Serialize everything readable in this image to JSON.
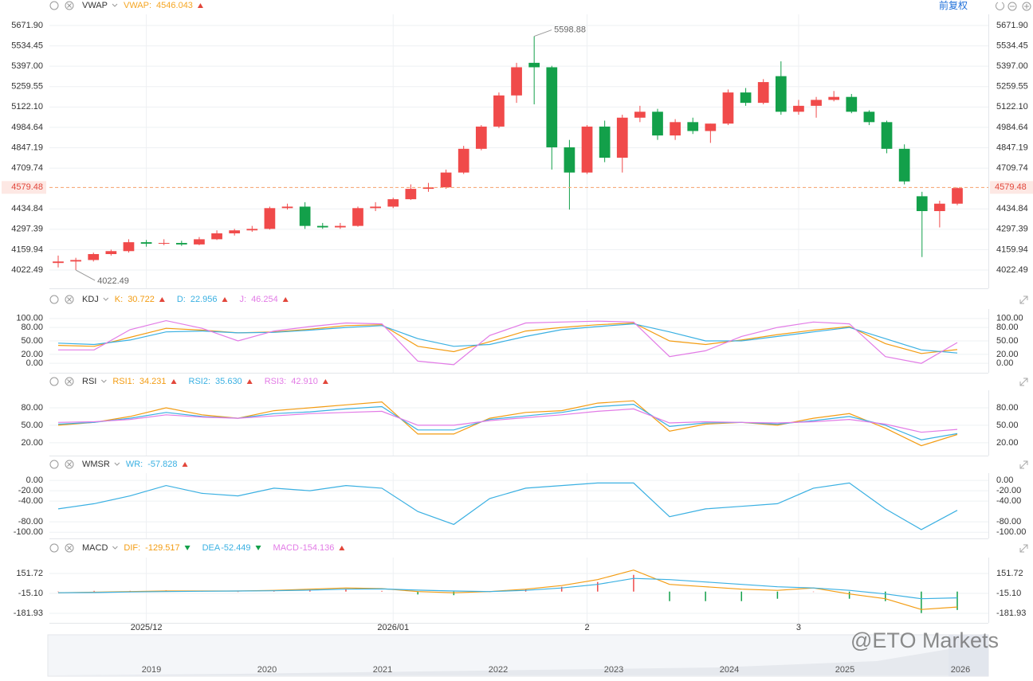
{
  "toolbar": {
    "adjust": "前复权"
  },
  "watermark": "@ETO Markets",
  "navigator": {
    "years": [
      "2019",
      "2020",
      "2021",
      "2022",
      "2023",
      "2024",
      "2025",
      "2026"
    ]
  },
  "chart_data": [
    {
      "type": "candlestick",
      "title": "VWAP",
      "indicators": [
        {
          "name": "VWAP:",
          "current": 4546.043,
          "color": "#f5a623",
          "trend": "up"
        }
      ],
      "categories": [
        null,
        null,
        null,
        null,
        null,
        "2025/12",
        null,
        null,
        null,
        null,
        null,
        null,
        null,
        null,
        null,
        null,
        null,
        null,
        null,
        "2026/01",
        null,
        null,
        null,
        null,
        null,
        null,
        null,
        null,
        null,
        null,
        "2",
        null,
        null,
        null,
        null,
        null,
        null,
        null,
        null,
        null,
        null,
        null,
        "3",
        null,
        null,
        null,
        null,
        null,
        null,
        null,
        null,
        null
      ],
      "open": [
        4070,
        4080,
        4090,
        4130,
        4150,
        4210,
        4200,
        4205,
        4195,
        4230,
        4270,
        4290,
        4300,
        4440,
        4450,
        4320,
        4310,
        4320,
        4440,
        4450,
        4500,
        4570,
        4580,
        4680,
        4840,
        4990,
        5200,
        5420,
        5390,
        4850,
        4680,
        4990,
        4780,
        5050,
        5090,
        4930,
        5020,
        4960,
        5010,
        5220,
        5150,
        5330,
        5090,
        5130,
        5170,
        5190,
        5090,
        5020,
        4840,
        4520,
        4420,
        4470
      ],
      "high": [
        4120,
        4105,
        4140,
        4160,
        4230,
        4225,
        4230,
        4220,
        4245,
        4290,
        4300,
        4320,
        4450,
        4470,
        4480,
        4340,
        4340,
        4450,
        4480,
        4510,
        4600,
        4610,
        4700,
        4860,
        5000,
        5220,
        5420,
        5598.88,
        5400,
        4900,
        5000,
        5030,
        5070,
        5130,
        5110,
        5040,
        5050,
        5010,
        5240,
        5250,
        5310,
        5430,
        5170,
        5190,
        5230,
        5210,
        5100,
        5030,
        4870,
        4550,
        4490,
        4580
      ],
      "low": [
        4040,
        4022.49,
        4080,
        4120,
        4140,
        4180,
        4190,
        4185,
        4190,
        4225,
        4255,
        4280,
        4295,
        4430,
        4300,
        4300,
        4300,
        4315,
        4420,
        4440,
        4495,
        4550,
        4570,
        4670,
        4830,
        4980,
        5150,
        5140,
        4700,
        4430,
        4670,
        4750,
        4680,
        5020,
        4900,
        4900,
        4940,
        4880,
        5000,
        5130,
        5140,
        5070,
        5070,
        5050,
        5160,
        5080,
        5000,
        4810,
        4600,
        4110,
        4310,
        4460
      ],
      "close": [
        4080,
        4090,
        4130,
        4150,
        4210,
        4200,
        4205,
        4195,
        4230,
        4270,
        4290,
        4300,
        4440,
        4450,
        4320,
        4310,
        4320,
        4440,
        4450,
        4500,
        4570,
        4580,
        4680,
        4840,
        4990,
        5200,
        5390,
        5390,
        4850,
        4680,
        4990,
        4780,
        5050,
        5090,
        4930,
        5020,
        4960,
        5010,
        5220,
        5150,
        5290,
        5090,
        5130,
        5170,
        5190,
        5090,
        5020,
        4840,
        4620,
        4420,
        4470,
        4575
      ],
      "up_color": "#f04a4a",
      "down_color": "#13a04a",
      "last_price": {
        "value": 4579.48,
        "label": "4579.48"
      },
      "ylim": [
        3899,
        5747
      ],
      "yticks": [
        {
          "value": 5671.9,
          "label": "5671.90"
        },
        5534.45,
        {
          "value": 5397,
          "label": "5397.00"
        },
        5259.55,
        {
          "value": 5122.1,
          "label": "5122.10"
        },
        4984.64,
        4847.19,
        4709.74,
        4434.84,
        4297.39,
        4159.94,
        4022.49
      ],
      "grid": true
    },
    {
      "type": "line",
      "title": "KDJ",
      "series": [
        {
          "name": "K:",
          "color": "#f39c12",
          "trend": "up",
          "current": 30.722,
          "values": [
            40,
            38,
            58,
            78,
            74,
            68,
            70,
            76,
            84,
            86,
            38,
            26,
            48,
            72,
            80,
            86,
            90,
            50,
            42,
            52,
            64,
            74,
            82,
            44,
            22,
            30.722
          ]
        },
        {
          "name": "D:",
          "color": "#3ab0e2",
          "trend": "up",
          "current": 22.956,
          "values": [
            45,
            42,
            52,
            70,
            72,
            68,
            69,
            74,
            80,
            84,
            55,
            38,
            42,
            60,
            75,
            82,
            88,
            70,
            50,
            50,
            60,
            70,
            80,
            55,
            30,
            22.956
          ]
        },
        {
          "name": "J:",
          "color": "#e27be6",
          "trend": "up",
          "current": 46.254,
          "values": [
            30,
            30,
            75,
            95,
            78,
            50,
            72,
            82,
            90,
            88,
            5,
            -3,
            62,
            90,
            92,
            94,
            92,
            15,
            28,
            60,
            80,
            92,
            88,
            15,
            0,
            46.254
          ]
        }
      ],
      "ylim": [
        -21,
        121
      ],
      "yticks": [
        {
          "value": 100,
          "label": "100.00"
        },
        {
          "value": 80,
          "label": "80.00"
        },
        {
          "value": 50,
          "label": "50.00"
        },
        {
          "value": 20,
          "label": "20.00"
        },
        {
          "value": 0,
          "label": "0.00"
        }
      ],
      "grid": true
    },
    {
      "type": "line",
      "title": "RSI",
      "series": [
        {
          "name": "RSI1:",
          "color": "#f39c12",
          "trend": "up",
          "current": 34.231,
          "values": [
            50,
            55,
            65,
            80,
            68,
            62,
            75,
            80,
            85,
            90,
            35,
            35,
            62,
            72,
            75,
            88,
            92,
            40,
            52,
            55,
            50,
            62,
            70,
            45,
            15,
            34.231
          ]
        },
        {
          "name": "RSI2:",
          "color": "#3ab0e2",
          "trend": "up",
          "current": {
            "value": 35.63,
            "label": "35.630"
          },
          "values": [
            52,
            55,
            62,
            72,
            65,
            62,
            70,
            73,
            78,
            82,
            42,
            42,
            60,
            66,
            72,
            82,
            86,
            48,
            54,
            55,
            52,
            58,
            65,
            50,
            25,
            35.63
          ]
        },
        {
          "name": "RSI3:",
          "color": "#e27be6",
          "trend": "up",
          "current": {
            "value": 42.91,
            "label": "42.910"
          },
          "values": [
            55,
            56,
            60,
            68,
            64,
            62,
            66,
            70,
            72,
            74,
            50,
            50,
            58,
            63,
            68,
            74,
            78,
            54,
            56,
            55,
            54,
            56,
            60,
            52,
            38,
            42.91
          ]
        }
      ],
      "ylim": [
        -2,
        110
      ],
      "yticks": [
        {
          "value": 80,
          "label": "80.00"
        },
        {
          "value": 50,
          "label": "50.00"
        },
        {
          "value": 20,
          "label": "20.00"
        }
      ],
      "grid": true
    },
    {
      "type": "line",
      "title": "WMSR",
      "series": [
        {
          "name": "WR:",
          "color": "#3ab0e2",
          "trend": "up",
          "current": -57.828,
          "values": [
            -55,
            -45,
            -30,
            -10,
            -25,
            -30,
            -15,
            -20,
            -10,
            -15,
            -60,
            -85,
            -35,
            -15,
            -10,
            -5,
            -5,
            -70,
            -55,
            -50,
            -45,
            -15,
            -5,
            -55,
            -95,
            -57.828
          ]
        }
      ],
      "ylim": [
        -112,
        14
      ],
      "yticks": [
        {
          "value": 0,
          "label": "0.00"
        },
        {
          "value": -20,
          "label": "-20.00"
        },
        {
          "value": -40,
          "label": "-40.00"
        },
        {
          "value": -80,
          "label": "-80.00"
        },
        {
          "value": -100,
          "label": "-100.00"
        }
      ],
      "grid": true
    },
    {
      "type": "macd",
      "title": "MACD",
      "series": [
        {
          "name": "DIF:",
          "color": "#f39c12",
          "trend": "down",
          "current": -129.517,
          "values": [
            -10,
            -5,
            0,
            5,
            5,
            5,
            10,
            20,
            30,
            25,
            0,
            -10,
            0,
            20,
            50,
            100,
            180,
            60,
            40,
            20,
            10,
            30,
            -20,
            -60,
            -150,
            -129.517
          ]
        },
        {
          "name": "DEA",
          "color": "#3ab0e2",
          "trend": "down",
          "current": -52.449,
          "values": [
            -10,
            -8,
            -3,
            0,
            3,
            5,
            7,
            12,
            20,
            22,
            12,
            5,
            0,
            10,
            30,
            60,
            110,
            100,
            80,
            60,
            40,
            30,
            10,
            -20,
            -60,
            -52.449
          ]
        },
        {
          "name": "MACD",
          "color": "#e27be6",
          "trend": "up",
          "current": -154.136,
          "bars": true,
          "values": [
            0,
            6,
            6,
            10,
            4,
            0,
            6,
            16,
            20,
            6,
            -24,
            -30,
            0,
            20,
            40,
            80,
            140,
            -80,
            -80,
            -80,
            -60,
            0,
            -60,
            -80,
            -180,
            -154.136
          ]
        }
      ],
      "up_color": "#f04a4a",
      "down_color": "#13a04a",
      "ylim": [
        -262,
        285
      ],
      "yticks": [
        151.72,
        {
          "value": -15.1,
          "label": "-15.10"
        },
        -181.93
      ],
      "grid": true
    }
  ]
}
